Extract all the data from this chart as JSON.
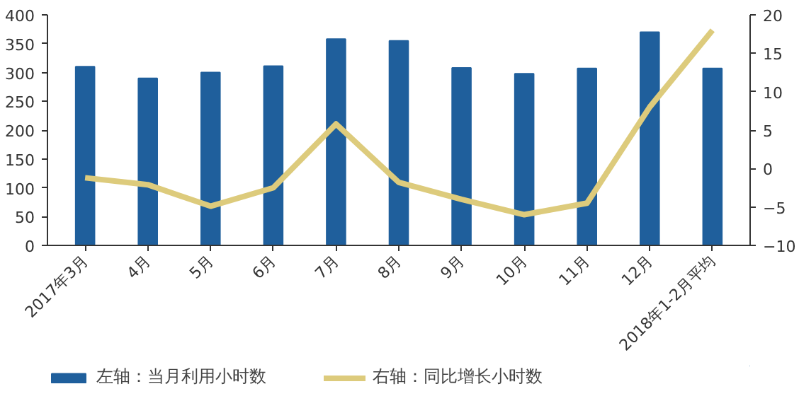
{
  "chart_data": {
    "type": "bar",
    "categories": [
      "2017年3月",
      "4月",
      "5月",
      "6月",
      "7月",
      "8月",
      "9月",
      "10月",
      "11月",
      "12月",
      "2018年1-2月平均"
    ],
    "series": [
      {
        "name": "左轴：当月利用小时数",
        "color": "#1f5f9c",
        "values": [
          310,
          290,
          300,
          311,
          358,
          355,
          308,
          298,
          307,
          370,
          307
        ]
      },
      {
        "name": "右轴：同比增长小时数",
        "type": "line",
        "axis": "y2",
        "color": "#ddcb7c",
        "values": [
          -1.2,
          -2.1,
          -4.9,
          -2.5,
          5.8,
          -1.8,
          -4,
          -6,
          -4.5,
          8,
          18
        ]
      }
    ],
    "ylim": [
      0,
      400
    ],
    "yticks": [
      0,
      50,
      100,
      150,
      200,
      250,
      300,
      350,
      400
    ],
    "y2lim": [
      -10,
      20
    ],
    "y2ticks": [
      -10,
      -5,
      0,
      5,
      10,
      15,
      20
    ],
    "grid": false,
    "legend": "bottom",
    "marker": "none",
    "line_style": "solid"
  }
}
